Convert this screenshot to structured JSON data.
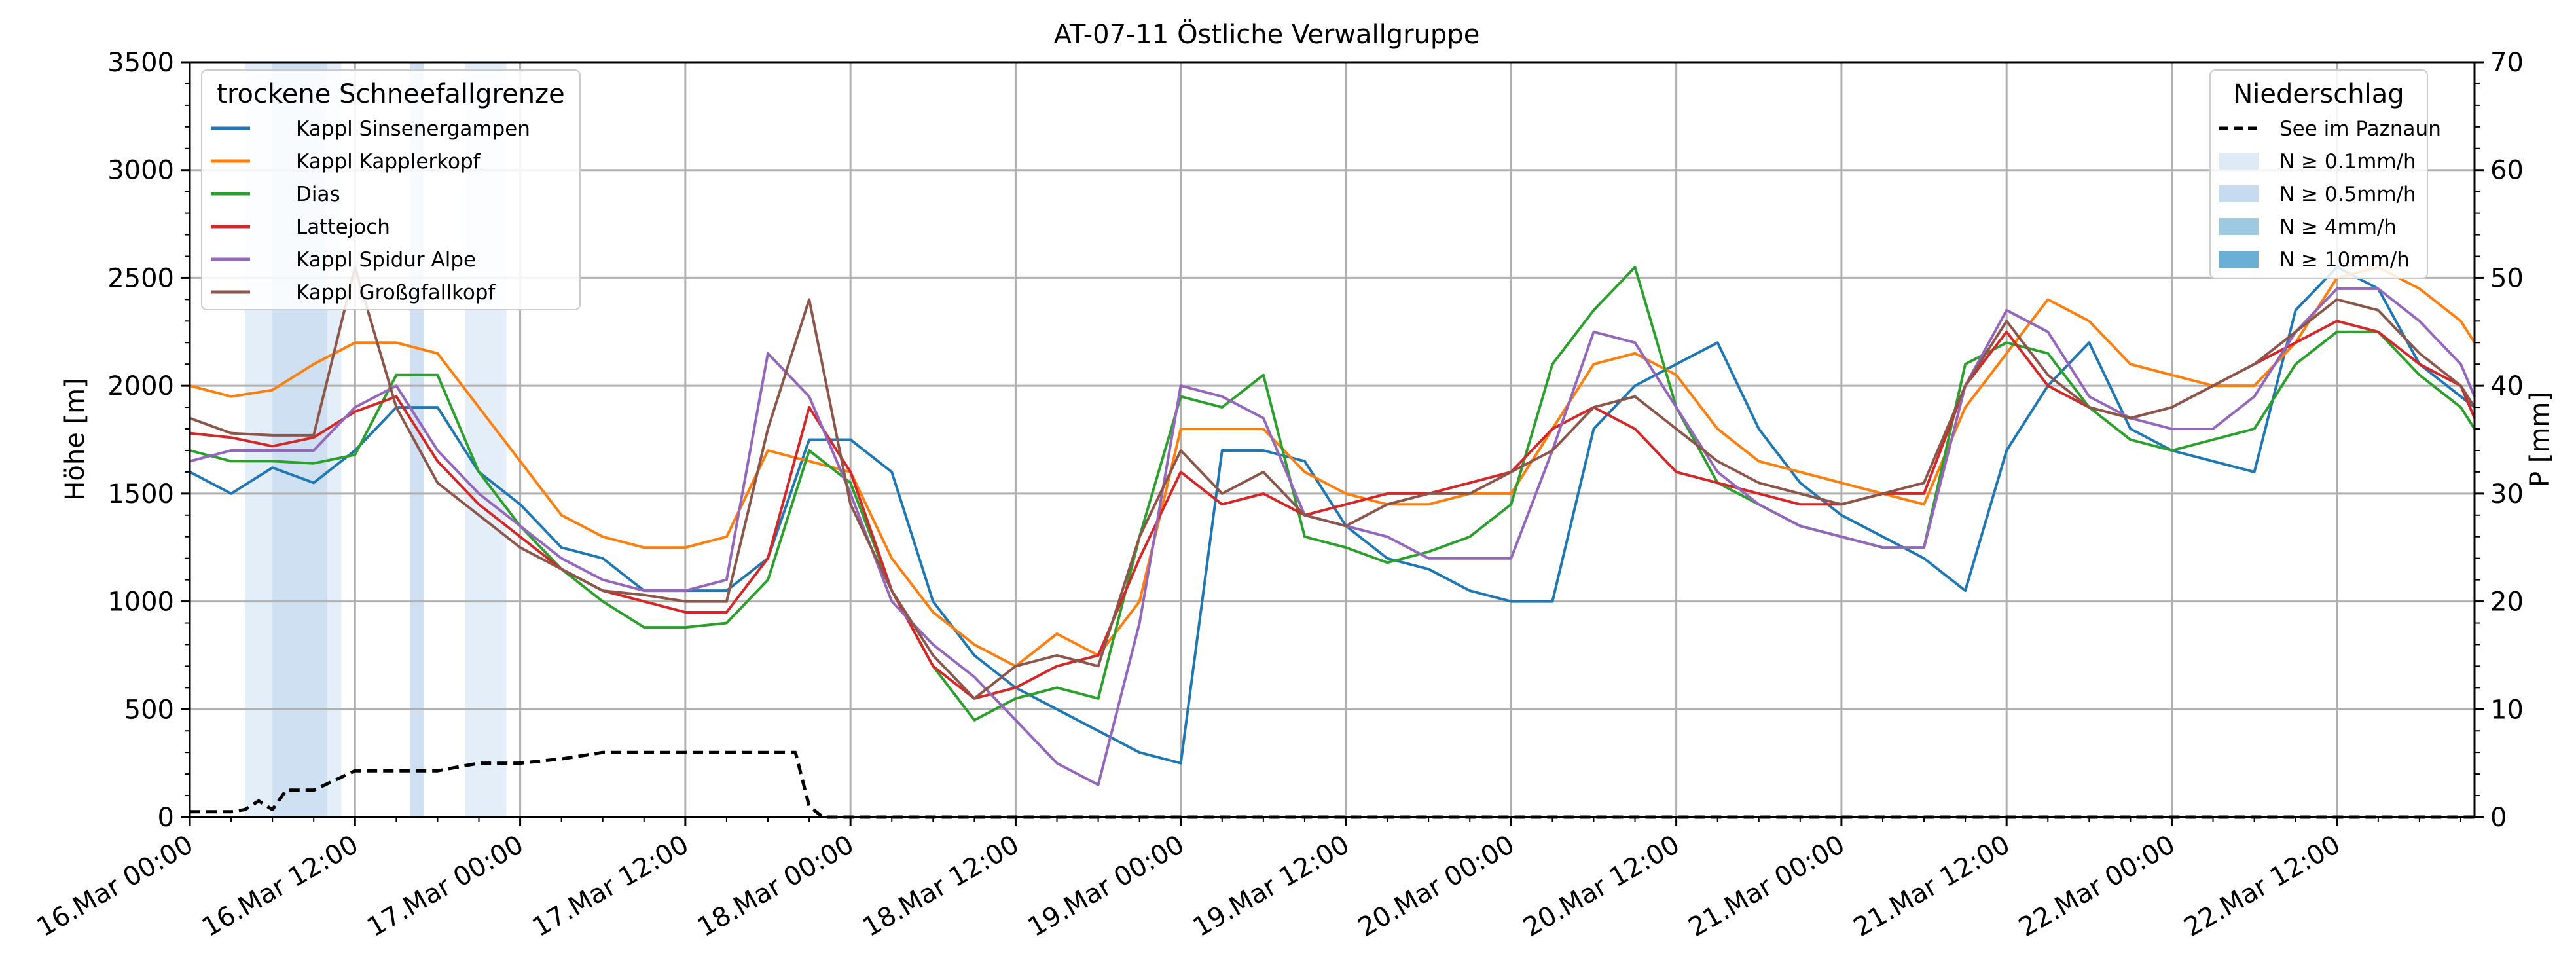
{
  "chart_data": {
    "type": "line",
    "title": "AT-07-11 Östliche Verwallgruppe",
    "ylabel": "Höhe [m]",
    "y2label": "P [mm]",
    "ylim": [
      0,
      3500
    ],
    "y2lim": [
      0,
      70
    ],
    "xlim": [
      "2025-03-16 00:00",
      "2025-03-22 22:00"
    ],
    "y_ticks": [
      0,
      500,
      1000,
      1500,
      2000,
      2500,
      3000,
      3500
    ],
    "y2_ticks": [
      0,
      10,
      20,
      30,
      40,
      50,
      60,
      70
    ],
    "x_tick_labels": [
      "16.Mar 00:00",
      "16.Mar 12:00",
      "17.Mar 00:00",
      "17.Mar 12:00",
      "18.Mar 00:00",
      "18.Mar 12:00",
      "19.Mar 00:00",
      "19.Mar 12:00",
      "20.Mar 00:00",
      "20.Mar 12:00",
      "21.Mar 00:00",
      "21.Mar 12:00",
      "22.Mar 00:00",
      "22.Mar 12:00"
    ],
    "grid": true,
    "legend_left": {
      "title": "trockene Schneefallgrenze",
      "placement": "top-left",
      "entries": [
        "Kappl Sinsenergampen",
        "Kappl Kapplerkopf",
        "Dias",
        "Lattejoch",
        "Kappl Spidur Alpe",
        "Kappl Großgfallkopf"
      ]
    },
    "legend_right": {
      "title": "Niederschlag",
      "placement": "top-right",
      "line_label": "See im Paznaun",
      "band_labels": [
        "N ≥ 0.1mm/h",
        "N ≥ 0.5mm/h",
        "N ≥ 4mm/h",
        "N ≥ 10mm/h"
      ],
      "band_colors": [
        "#deebf7",
        "#c6dbef",
        "#9ecae1",
        "#6baed6"
      ]
    },
    "series": [
      {
        "name": "Kappl Sinsenergampen",
        "color": "#1f77b4",
        "x": [
          0,
          3,
          6,
          9,
          12,
          15,
          18,
          21,
          24,
          27,
          30,
          33,
          36,
          39,
          42,
          45,
          48,
          51,
          54,
          57,
          60,
          63,
          66,
          69,
          72,
          75,
          78,
          81,
          84,
          87,
          90,
          93,
          96,
          99,
          102,
          105,
          108,
          111,
          114,
          117,
          120,
          123,
          126,
          129,
          132,
          135,
          138,
          141,
          144,
          147,
          150,
          153,
          156,
          159,
          162,
          165,
          166
        ],
        "y": [
          1600,
          1500,
          1620,
          1550,
          1700,
          1900,
          1900,
          1600,
          1450,
          1250,
          1200,
          1050,
          1050,
          1050,
          1200,
          1750,
          1750,
          1600,
          1000,
          750,
          600,
          500,
          400,
          300,
          250,
          1700,
          1700,
          1650,
          1350,
          1200,
          1150,
          1050,
          1000,
          1000,
          1800,
          2000,
          2100,
          2200,
          1800,
          1550,
          1400,
          1300,
          1200,
          1050,
          1700,
          2000,
          2200,
          1800,
          1700,
          1650,
          1600,
          2350,
          2550,
          2450,
          2100,
          1950,
          1900
        ]
      },
      {
        "name": "Kappl Kapplerkopf",
        "color": "#ff7f0e",
        "x": [
          0,
          3,
          6,
          9,
          12,
          15,
          18,
          21,
          24,
          27,
          30,
          33,
          36,
          39,
          42,
          45,
          48,
          51,
          54,
          57,
          60,
          63,
          66,
          69,
          72,
          75,
          78,
          81,
          84,
          87,
          90,
          93,
          96,
          99,
          102,
          105,
          108,
          111,
          114,
          117,
          120,
          123,
          126,
          129,
          132,
          135,
          138,
          141,
          144,
          147,
          150,
          153,
          156,
          159,
          162,
          165,
          166
        ],
        "y": [
          2000,
          1950,
          1980,
          2100,
          2200,
          2200,
          2150,
          1900,
          1650,
          1400,
          1300,
          1250,
          1250,
          1300,
          1700,
          1650,
          1600,
          1200,
          950,
          800,
          700,
          850,
          750,
          1000,
          1800,
          1800,
          1800,
          1600,
          1500,
          1450,
          1450,
          1500,
          1500,
          1800,
          2100,
          2150,
          2050,
          1800,
          1650,
          1600,
          1550,
          1500,
          1450,
          1900,
          2150,
          2400,
          2300,
          2100,
          2050,
          2000,
          2000,
          2200,
          2500,
          2550,
          2450,
          2300,
          2200
        ]
      },
      {
        "name": "Dias",
        "color": "#2ca02c",
        "x": [
          0,
          3,
          6,
          9,
          12,
          15,
          18,
          21,
          24,
          27,
          30,
          33,
          36,
          39,
          42,
          45,
          48,
          51,
          54,
          57,
          60,
          63,
          66,
          69,
          72,
          75,
          78,
          81,
          84,
          87,
          90,
          93,
          96,
          99,
          102,
          105,
          108,
          111,
          114,
          117,
          120,
          123,
          126,
          129,
          132,
          135,
          138,
          141,
          144,
          147,
          150,
          153,
          156,
          159,
          162,
          165,
          166
        ],
        "y": [
          1700,
          1650,
          1650,
          1640,
          1680,
          2050,
          2050,
          1600,
          1350,
          1150,
          1000,
          880,
          880,
          900,
          1100,
          1700,
          1550,
          1050,
          700,
          450,
          550,
          600,
          550,
          1300,
          1950,
          1900,
          2050,
          1300,
          1250,
          1180,
          1230,
          1300,
          1450,
          2100,
          2350,
          2550,
          1900,
          1550,
          1450,
          1350,
          1300,
          1250,
          1250,
          2100,
          2200,
          2150,
          1900,
          1750,
          1700,
          1750,
          1800,
          2100,
          2250,
          2250,
          2050,
          1900,
          1800
        ]
      },
      {
        "name": "Lattejoch",
        "color": "#d62728",
        "x": [
          0,
          3,
          6,
          9,
          12,
          15,
          18,
          21,
          24,
          27,
          30,
          33,
          36,
          39,
          42,
          45,
          48,
          51,
          54,
          57,
          60,
          63,
          66,
          69,
          72,
          75,
          78,
          81,
          84,
          87,
          90,
          93,
          96,
          99,
          102,
          105,
          108,
          111,
          114,
          117,
          120,
          123,
          126,
          129,
          132,
          135,
          138,
          141,
          144,
          147,
          150,
          153,
          156,
          159,
          162,
          165,
          166
        ],
        "y": [
          1780,
          1760,
          1720,
          1760,
          1880,
          1950,
          1650,
          1450,
          1300,
          1150,
          1050,
          1000,
          950,
          950,
          1200,
          1900,
          1600,
          1050,
          700,
          550,
          600,
          700,
          750,
          1200,
          1600,
          1450,
          1500,
          1400,
          1450,
          1500,
          1500,
          1550,
          1600,
          1800,
          1900,
          1800,
          1600,
          1550,
          1500,
          1450,
          1450,
          1500,
          1500,
          2000,
          2250,
          2000,
          1900,
          1850,
          1900,
          2000,
          2100,
          2200,
          2300,
          2250,
          2100,
          2000,
          1850
        ]
      },
      {
        "name": "Kappl Spidur Alpe",
        "color": "#9467bd",
        "x": [
          0,
          3,
          6,
          9,
          12,
          15,
          18,
          21,
          24,
          27,
          30,
          33,
          36,
          39,
          42,
          45,
          48,
          51,
          54,
          57,
          60,
          63,
          66,
          69,
          72,
          75,
          78,
          81,
          84,
          87,
          90,
          93,
          96,
          99,
          102,
          105,
          108,
          111,
          114,
          117,
          120,
          123,
          126,
          129,
          132,
          135,
          138,
          141,
          144,
          147,
          150,
          153,
          156,
          159,
          162,
          165,
          166
        ],
        "y": [
          1650,
          1700,
          1700,
          1700,
          1900,
          2000,
          1700,
          1500,
          1350,
          1200,
          1100,
          1050,
          1050,
          1100,
          2150,
          1950,
          1500,
          1000,
          800,
          650,
          450,
          250,
          150,
          900,
          2000,
          1950,
          1850,
          1400,
          1350,
          1300,
          1200,
          1200,
          1200,
          1700,
          2250,
          2200,
          1900,
          1600,
          1450,
          1350,
          1300,
          1250,
          1250,
          2000,
          2350,
          2250,
          1950,
          1850,
          1800,
          1800,
          1950,
          2250,
          2450,
          2450,
          2300,
          2100,
          1950
        ]
      },
      {
        "name": "Kappl Großgfallkopf",
        "color": "#8c564b",
        "x": [
          0,
          3,
          6,
          9,
          12,
          15,
          18,
          21,
          24,
          27,
          30,
          33,
          36,
          39,
          42,
          45,
          48,
          51,
          54,
          57,
          60,
          63,
          66,
          69,
          72,
          75,
          78,
          81,
          84,
          87,
          90,
          93,
          96,
          99,
          102,
          105,
          108,
          111,
          114,
          117,
          120,
          123,
          126,
          129,
          132,
          135,
          138,
          141,
          144,
          147,
          150,
          153,
          156,
          159,
          162,
          165,
          166
        ],
        "y": [
          1850,
          1780,
          1770,
          1770,
          2550,
          1900,
          1550,
          1400,
          1250,
          1150,
          1050,
          1030,
          1000,
          1000,
          1800,
          2400,
          1450,
          1050,
          750,
          550,
          700,
          750,
          700,
          1300,
          1700,
          1500,
          1600,
          1400,
          1350,
          1450,
          1500,
          1500,
          1600,
          1700,
          1900,
          1950,
          1800,
          1650,
          1550,
          1500,
          1450,
          1500,
          1550,
          2000,
          2300,
          2050,
          1900,
          1850,
          1900,
          2000,
          2100,
          2250,
          2400,
          2350,
          2150,
          2000,
          1900
        ]
      },
      {
        "name": "See im Paznaun",
        "color": "#000000",
        "dashed": true,
        "x": [
          0,
          3,
          4,
          5,
          6,
          7,
          9,
          12,
          15,
          18,
          21,
          24,
          27,
          30,
          32,
          34,
          36,
          38,
          40,
          42,
          44,
          45,
          46,
          48,
          60,
          84,
          108,
          132,
          156,
          166
        ],
        "y": [
          0.5,
          0.5,
          0.7,
          1.5,
          0.7,
          2.5,
          2.5,
          4.3,
          4.3,
          4.3,
          5,
          5,
          5.4,
          6,
          6,
          6,
          6,
          6,
          6,
          6,
          6,
          1,
          0,
          0,
          0,
          0,
          0,
          0,
          0,
          0
        ]
      }
    ],
    "precip_bands": [
      {
        "from": 4,
        "to": 6,
        "level": 0
      },
      {
        "from": 6,
        "to": 10,
        "level": 1
      },
      {
        "from": 10,
        "to": 11,
        "level": 0
      },
      {
        "from": 16,
        "to": 17,
        "level": 1
      },
      {
        "from": 20,
        "to": 23,
        "level": 0
      }
    ]
  }
}
